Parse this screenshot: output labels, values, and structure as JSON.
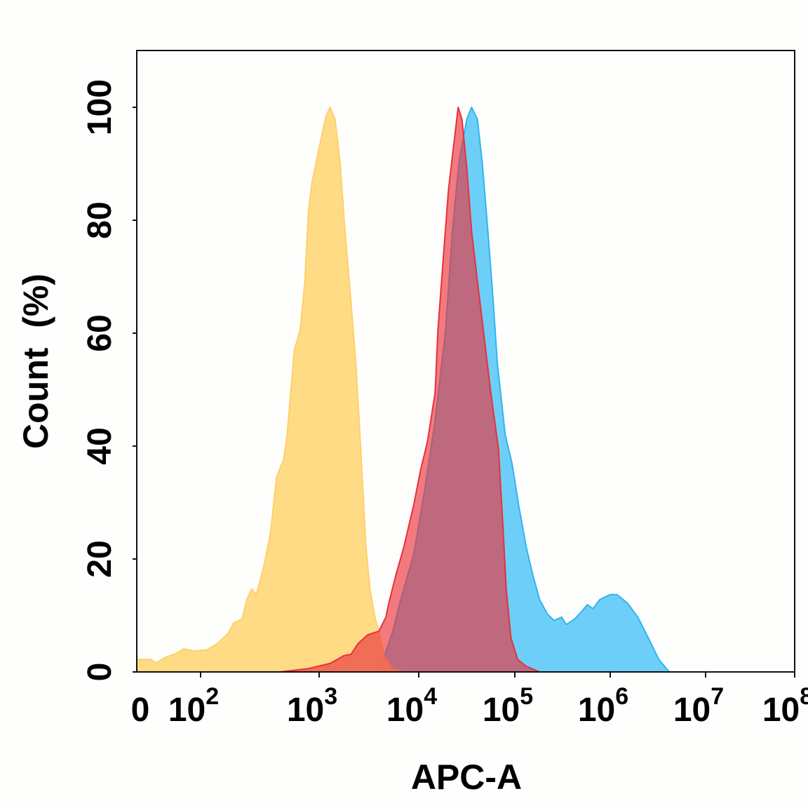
{
  "chart_data": {
    "type": "area",
    "title": "",
    "xlabel": "APC-A",
    "ylabel": "Count  (%)",
    "xscale": "log10 (decade units; '0' label marks the zero/low end)",
    "xlim": [
      1.47,
      8
    ],
    "ylim": [
      0,
      110
    ],
    "grid": false,
    "legend": "none",
    "x_ticks": [
      {
        "value": 1.5,
        "base": "0",
        "exp": ""
      },
      {
        "value": 2,
        "base": "10",
        "exp": "2"
      },
      {
        "value": 3,
        "base": "10",
        "exp": "3"
      },
      {
        "value": 4,
        "base": "10",
        "exp": "4"
      },
      {
        "value": 5,
        "base": "10",
        "exp": "5"
      },
      {
        "value": 6,
        "base": "10",
        "exp": "6"
      },
      {
        "value": 7,
        "base": "10",
        "exp": "7"
      },
      {
        "value": 8,
        "base": "10",
        "exp": "8"
      }
    ],
    "y_ticks": [
      "0",
      "20",
      "40",
      "60",
      "80",
      "100"
    ],
    "series": [
      {
        "name": "blue",
        "color": "#6DCFF8",
        "stroke": "#2FB4EE",
        "x": [
          3.6,
          3.74,
          3.81,
          3.95,
          4.06,
          4.17,
          4.28,
          4.35,
          4.42,
          4.5,
          4.55,
          4.61,
          4.66,
          4.72,
          4.77,
          4.82,
          4.9,
          4.97,
          5.04,
          5.12,
          5.19,
          5.26,
          5.34,
          5.41,
          5.49,
          5.54,
          5.63,
          5.71,
          5.76,
          5.82,
          5.89,
          6.0,
          6.07,
          6.18,
          6.29,
          6.4,
          6.51,
          6.62
        ],
        "y": [
          0,
          7.2,
          12.2,
          20.9,
          32.0,
          44.5,
          60.6,
          78.0,
          90.4,
          97.9,
          100,
          97.9,
          90.4,
          78.0,
          66.8,
          54.4,
          42.0,
          37.0,
          29.6,
          22.1,
          17.1,
          12.8,
          10.3,
          9.1,
          9.7,
          8.4,
          9.4,
          10.9,
          11.9,
          11.2,
          12.8,
          13.7,
          13.7,
          12.2,
          9.7,
          6.0,
          2.2,
          0
        ]
      },
      {
        "name": "yellow",
        "color": "#FFD97E",
        "stroke": "#FFD06A",
        "x": [
          1.47,
          1.59,
          1.63,
          1.7,
          1.79,
          1.86,
          1.94,
          2.05,
          2.14,
          2.23,
          2.28,
          2.35,
          2.39,
          2.43,
          2.47,
          2.53,
          2.59,
          2.64,
          2.7,
          2.73,
          2.76,
          2.79,
          2.84,
          2.88,
          2.91,
          2.94,
          3.0,
          3.07,
          3.11,
          3.16,
          3.21,
          3.26,
          3.32,
          3.37,
          3.41,
          3.44,
          3.47,
          3.51,
          3.56,
          3.6,
          3.65,
          3.74,
          3.88
        ],
        "y": [
          2.2,
          2.2,
          1.6,
          2.5,
          3.2,
          4.1,
          3.7,
          3.9,
          5.0,
          6.8,
          8.7,
          9.4,
          12.8,
          14.7,
          13.7,
          18.4,
          24.6,
          34.5,
          37.6,
          42.0,
          49.4,
          56.9,
          60.6,
          69.3,
          81.7,
          86.7,
          92.9,
          98.5,
          100,
          97.9,
          90.4,
          78.0,
          65.6,
          54.4,
          42.0,
          32.0,
          22.1,
          14.7,
          9.7,
          7.2,
          2.9,
          0.4,
          0
        ]
      },
      {
        "name": "red",
        "color": "#EB323C",
        "stroke": "#E8303A",
        "x": [
          2.67,
          2.91,
          3.11,
          3.25,
          3.32,
          3.39,
          3.49,
          3.6,
          3.67,
          3.7,
          3.77,
          3.85,
          3.95,
          4.02,
          4.09,
          4.17,
          4.2,
          4.26,
          4.31,
          4.37,
          4.41,
          4.45,
          4.5,
          4.55,
          4.61,
          4.68,
          4.75,
          4.83,
          4.88,
          4.91,
          4.96,
          5.03,
          5.12,
          5.26
        ],
        "y": [
          0,
          0.6,
          1.5,
          2.9,
          3.1,
          5.0,
          6.6,
          7.2,
          9.7,
          12.2,
          17.1,
          22.1,
          29.6,
          35.8,
          40.7,
          49.4,
          60.6,
          74.3,
          85.5,
          94.2,
          100,
          97.9,
          89.2,
          78.0,
          69.3,
          59.4,
          49.4,
          39.5,
          24.6,
          14.7,
          6.0,
          2.2,
          1.0,
          0
        ]
      }
    ]
  }
}
